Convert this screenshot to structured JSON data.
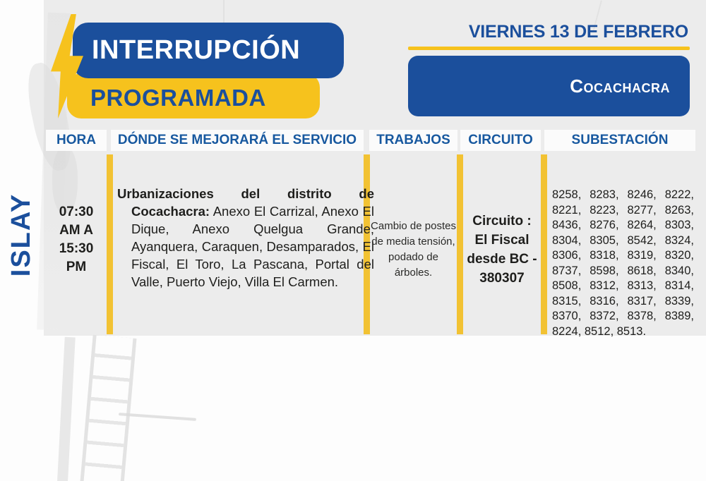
{
  "poster": {
    "title_line1": "INTERRUPCIÓN",
    "title_line2": "PROGRAMADA",
    "date": "VIERNES 13 DE FEBRERO",
    "district": "Cocachacra",
    "region": "ISLAY"
  },
  "table": {
    "headers": [
      "HORA",
      "DÓNDE SE MEJORARÁ EL SERVICIO",
      "TRABAJOS",
      "CIRCUITO",
      "SUBESTACIÓN"
    ],
    "row": {
      "hora": "07:30 AM A 15:30 PM",
      "donde_intro": "Urbanizaciones del distrito de Cocachacra:",
      "donde_detail": " Anexo El Carrizal, Anexo El Dique, Anexo Quelgua Grande, Ayanquera, Caraquen, Desamparados, El Fiscal, El Toro, La Pascana, Portal del Valle, Puerto Viejo, Villa El Carmen.",
      "trabajos": "Cambio de postes de media tensión, podado de árboles.",
      "circuito": "Circuito : El Fiscal desde BC - 380307",
      "subestacion": "8258, 8283, 8246, 8222, 8221, 8223, 8277, 8263, 8436, 8276, 8264, 8303, 8304, 8305, 8542, 8324, 8306, 8318, 8319, 8320, 8737, 8598, 8618, 8340, 8508, 8312, 8313, 8314, 8315, 8316, 8317, 8339, 8370, 8372, 8378, 8389, 8224, 8512, 8513."
    }
  },
  "icons": {
    "lightning_bolt": "lightning-bolt-icon"
  },
  "colors": {
    "brand_blue": "#1b4f9c",
    "brand_yellow": "#f6c21d",
    "separator_yellow": "#f2c233",
    "panel_gray": "#ececec",
    "header_text_blue": "#17589f",
    "text_dark": "#1e1e1c",
    "white": "#ffffff"
  }
}
